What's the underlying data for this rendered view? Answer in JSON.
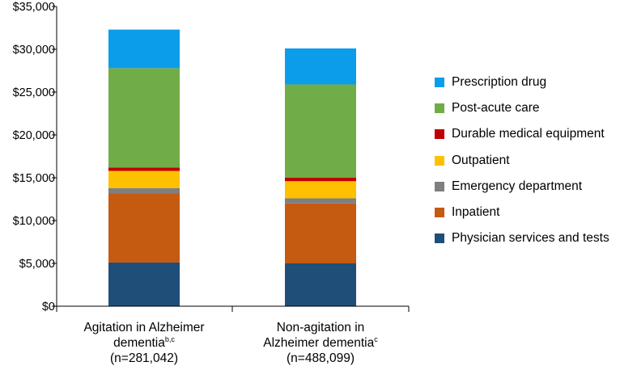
{
  "chart_data": {
    "type": "bar",
    "stacked": true,
    "title": "",
    "xlabel": "",
    "ylabel": "",
    "ylim": [
      0,
      35000
    ],
    "yticks": [
      0,
      5000,
      10000,
      15000,
      20000,
      25000,
      30000,
      35000
    ],
    "ytick_labels": [
      "$0",
      "$5,000",
      "$10,000",
      "$15,000",
      "$20,000",
      "$25,000",
      "$30,000",
      "$35,000"
    ],
    "categories": [
      {
        "line1": "Agitation in Alzheimer",
        "line2": "dementia",
        "sup": "b,c",
        "line3": "(n=281,042)"
      },
      {
        "line1": "Non-agitation in",
        "line2": "Alzheimer dementia",
        "sup": "c",
        "line3": "(n=488,099)"
      }
    ],
    "series": [
      {
        "name": "Physician services and tests",
        "color": "#1f4e79",
        "values": [
          5100,
          5000
        ]
      },
      {
        "name": "Inpatient",
        "color": "#c55a11",
        "values": [
          8100,
          7000
        ]
      },
      {
        "name": "Emergency department",
        "color": "#7f7f7f",
        "values": [
          600,
          600
        ]
      },
      {
        "name": "Outpatient",
        "color": "#ffc000",
        "values": [
          2000,
          2000
        ]
      },
      {
        "name": "Durable medical equipment",
        "color": "#c00000",
        "values": [
          400,
          400
        ]
      },
      {
        "name": "Post-acute care",
        "color": "#70ad47",
        "values": [
          11600,
          10900
        ]
      },
      {
        "name": "Prescription drug",
        "color": "#0b9dea",
        "values": [
          4500,
          4200
        ]
      }
    ],
    "legend_position": "right",
    "grid": false
  }
}
